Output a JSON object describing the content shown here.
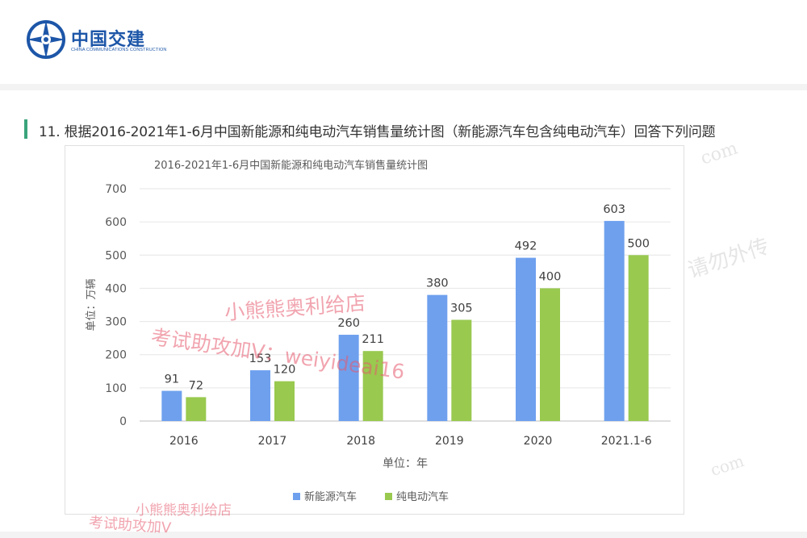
{
  "header": {
    "logo_text": "中国交建",
    "logo_subtext": "CHINA COMMUNICATIONS CONSTRUCTION"
  },
  "question": {
    "text": "11. 根据2016-2021年1-6月中国新能源和纯电动汽车销售量统计图（新能源汽车包含纯电动汽车）回答下列问题"
  },
  "watermarks": {
    "shop_name": "小熊熊奥利给店",
    "contact": "考试助攻加V：weiyideai16",
    "shop_name_bottom": "小熊熊奥利给店",
    "contact_bottom": "考试助攻加V",
    "right_text": "请勿外传",
    "right_domain_1": "com",
    "right_domain_2": "com"
  },
  "colors": {
    "new_energy": "#6ea0ee",
    "pure_electric": "#99c94f",
    "accent_bar": "#3aa37b",
    "logo": "#1d56a8"
  },
  "chart_data": {
    "type": "bar",
    "title": "2016-2021年1-6月中国新能源和纯电动汽车销售量统计图",
    "xlabel": "单位：年",
    "ylabel": "单位：万辆",
    "categories": [
      "2016",
      "2017",
      "2018",
      "2019",
      "2020",
      "2021.1-6"
    ],
    "series": [
      {
        "name": "新能源汽车",
        "values": [
          91,
          153,
          260,
          380,
          492,
          603
        ]
      },
      {
        "name": "纯电动汽车",
        "values": [
          72,
          120,
          211,
          305,
          400,
          500
        ]
      }
    ],
    "ylim": [
      0,
      700
    ],
    "yticks": [
      0,
      100,
      200,
      300,
      400,
      500,
      600,
      700
    ],
    "grid": true,
    "legend_position": "bottom"
  }
}
